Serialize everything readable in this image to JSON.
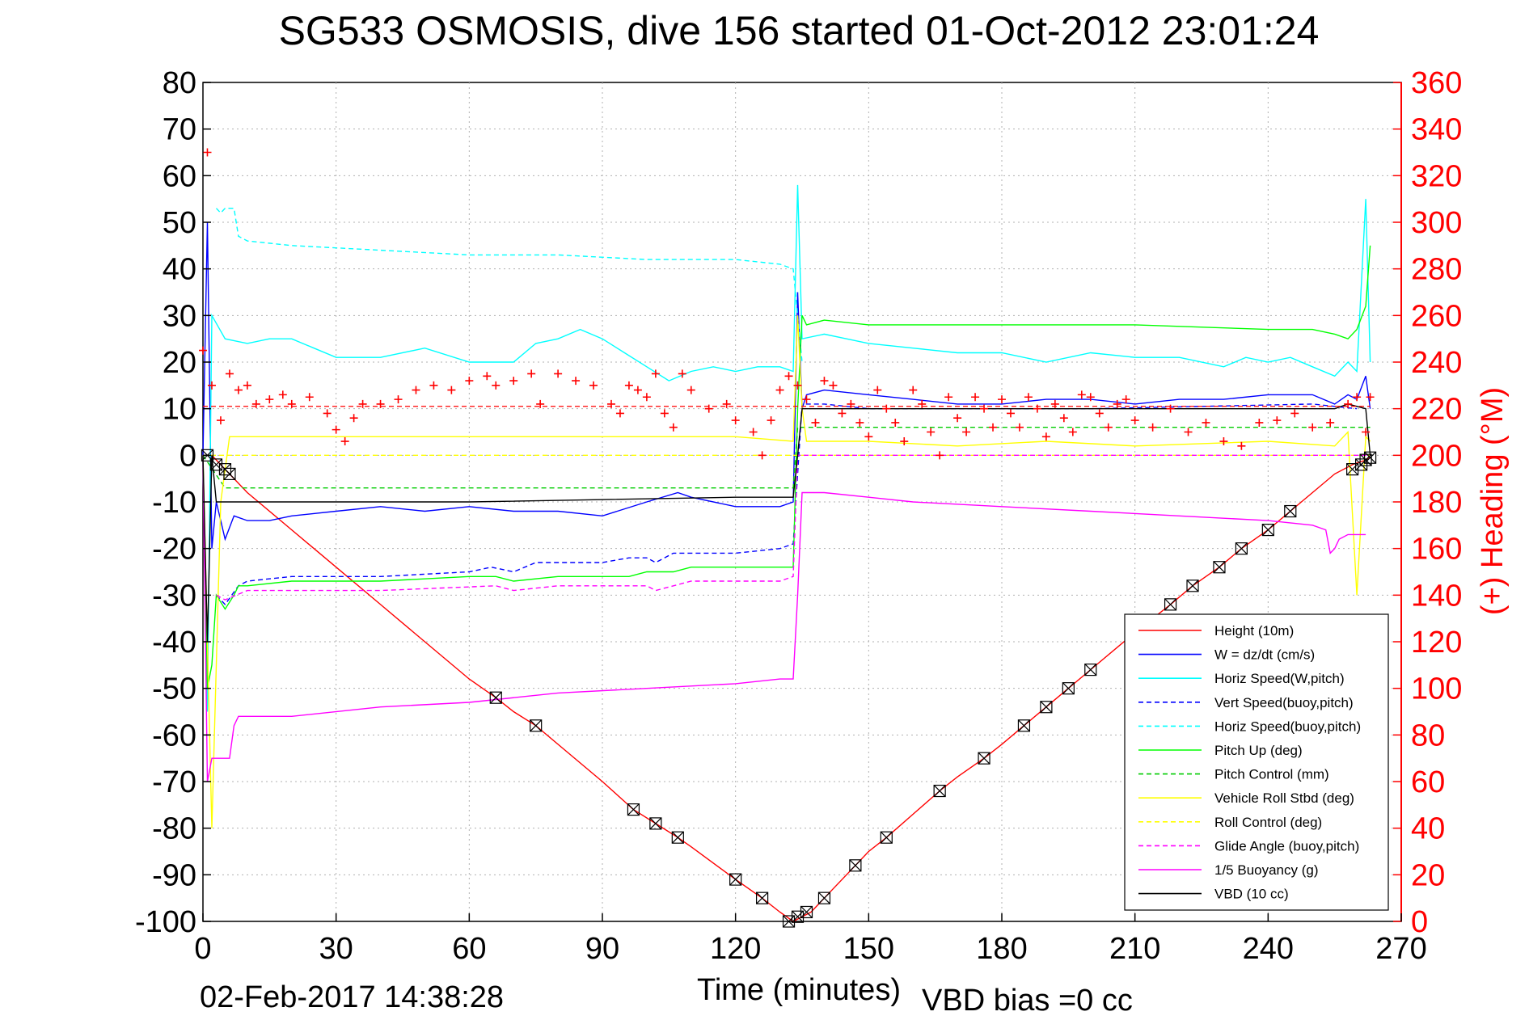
{
  "chart_data": {
    "type": "line",
    "title": "SG533 OSMOSIS, dive 156 started 01-Oct-2012 23:01:24",
    "xlabel": "Time (minutes)",
    "ylabel_right": "(+) Heading (°M)",
    "footer_left": "02-Feb-2017 14:38:28",
    "footer_right": "VBD bias =0 cc",
    "xlim": [
      0,
      270
    ],
    "ylim": [
      -100,
      80
    ],
    "ylim_right": [
      0,
      360
    ],
    "xticks": [
      0,
      30,
      60,
      90,
      120,
      150,
      180,
      210,
      240,
      270
    ],
    "yticks": [
      80,
      70,
      60,
      50,
      40,
      30,
      20,
      10,
      0,
      -10,
      -20,
      -30,
      -40,
      -50,
      -60,
      -70,
      -80,
      -90,
      -100
    ],
    "yticks_right": [
      360,
      340,
      320,
      300,
      280,
      260,
      240,
      220,
      200,
      180,
      160,
      140,
      120,
      100,
      80,
      60,
      40,
      20,
      0
    ],
    "grid": true,
    "legend_position": "bottom-right",
    "right_axis_color": "#ff0000",
    "series": [
      {
        "name": "Height (10m)",
        "color": "#ff0000",
        "dash": "solid",
        "x": [
          0,
          2,
          5,
          10,
          20,
          30,
          40,
          50,
          60,
          66,
          70,
          75,
          80,
          90,
          97,
          102,
          107,
          110,
          120,
          126,
          130,
          133,
          135,
          137,
          140,
          147,
          150,
          154,
          160,
          166,
          170,
          176,
          180,
          185,
          190,
          195,
          200,
          210,
          218,
          223,
          229,
          234,
          240,
          245,
          250,
          255,
          259,
          262,
          263
        ],
        "y": [
          0,
          0,
          -3,
          -8,
          -16,
          -24,
          -32,
          -40,
          -48,
          -52,
          -55,
          -58,
          -62,
          -70,
          -76,
          -79,
          -82,
          -84,
          -91,
          -95,
          -98,
          -100,
          -99,
          -98,
          -95,
          -88,
          -85,
          -82,
          -77,
          -72,
          -69,
          -65,
          -62,
          -58,
          -54,
          -50,
          -46,
          -38,
          -32,
          -28,
          -24,
          -20,
          -16,
          -12,
          -8,
          -4,
          -2,
          -1,
          -0.5
        ]
      },
      {
        "name": "W = dz/dt (cm/s)",
        "color": "#0000ff",
        "dash": "solid",
        "x": [
          0,
          1,
          2,
          3,
          5,
          7,
          10,
          15,
          20,
          30,
          40,
          50,
          60,
          70,
          80,
          90,
          100,
          107,
          110,
          120,
          130,
          133,
          134,
          135,
          136,
          140,
          150,
          160,
          170,
          180,
          190,
          200,
          210,
          220,
          230,
          240,
          250,
          255,
          258,
          260,
          262,
          263
        ],
        "y": [
          0,
          50,
          -20,
          -10,
          -18,
          -13,
          -14,
          -14,
          -13,
          -12,
          -11,
          -12,
          -11,
          -12,
          -12,
          -13,
          -10,
          -8,
          -9,
          -11,
          -11,
          -10,
          35,
          10,
          13,
          14,
          13,
          12,
          11,
          11,
          12,
          12,
          11,
          12,
          12,
          13,
          13,
          11,
          13,
          12,
          17,
          10
        ]
      },
      {
        "name": "Horiz Speed(W,pitch)",
        "color": "#00ffff",
        "dash": "solid",
        "x": [
          0,
          1,
          2,
          5,
          10,
          15,
          20,
          25,
          30,
          40,
          50,
          60,
          70,
          75,
          80,
          85,
          90,
          95,
          100,
          105,
          110,
          115,
          120,
          125,
          130,
          133,
          134,
          135,
          140,
          145,
          150,
          160,
          170,
          180,
          190,
          200,
          210,
          220,
          230,
          235,
          240,
          245,
          250,
          255,
          258,
          260,
          262,
          263
        ],
        "y": [
          0,
          -55,
          30,
          25,
          24,
          25,
          25,
          23,
          21,
          21,
          23,
          20,
          20,
          24,
          25,
          27,
          25,
          22,
          19,
          16,
          18,
          19,
          18,
          19,
          19,
          18,
          58,
          25,
          26,
          25,
          24,
          23,
          22,
          22,
          20,
          22,
          21,
          21,
          19,
          21,
          20,
          21,
          19,
          17,
          20,
          18,
          55,
          20
        ]
      },
      {
        "name": "Vert Speed(buoy,pitch)",
        "color": "#0000ff",
        "dash": "6,4",
        "x": [
          3,
          5,
          8,
          10,
          20,
          40,
          60,
          65,
          70,
          75,
          80,
          90,
          96,
          100,
          102,
          106,
          110,
          120,
          130,
          133,
          135,
          140,
          150,
          200,
          250,
          260
        ],
        "y": [
          -30,
          -32,
          -28,
          -27,
          -26,
          -26,
          -25,
          -24,
          -25,
          -23,
          -23,
          -23,
          -22,
          -22,
          -23,
          -21,
          -21,
          -21,
          -20,
          -19,
          11,
          11,
          10,
          10,
          11,
          10
        ]
      },
      {
        "name": "Horiz Speed(buoy,pitch)",
        "color": "#00ffff",
        "dash": "6,4",
        "x": [
          3,
          4,
          5,
          7,
          8,
          10,
          20,
          40,
          60,
          80,
          100,
          120,
          130,
          133,
          135
        ],
        "y": [
          53,
          52,
          53,
          53,
          47,
          46,
          45,
          44,
          43,
          43,
          42,
          42,
          41,
          40,
          20
        ]
      },
      {
        "name": "Pitch Up (deg)",
        "color": "#00ff00",
        "dash": "solid",
        "x": [
          0,
          1,
          2,
          3,
          5,
          7,
          8,
          10,
          20,
          40,
          60,
          66,
          70,
          80,
          90,
          96,
          100,
          106,
          110,
          120,
          130,
          133,
          134,
          135,
          136,
          140,
          150,
          170,
          190,
          210,
          240,
          250,
          255,
          258,
          260,
          262,
          263
        ],
        "y": [
          0,
          -50,
          -45,
          -30,
          -33,
          -30,
          -28,
          -28,
          -27,
          -27,
          -26,
          -26,
          -27,
          -26,
          -26,
          -26,
          -25,
          -25,
          -24,
          -24,
          -24,
          -24,
          10,
          30,
          28,
          29,
          28,
          28,
          28,
          28,
          27,
          27,
          26,
          25,
          27,
          32,
          45
        ]
      },
      {
        "name": "Pitch Control (mm)",
        "color": "#00cc00",
        "dash": "6,4",
        "x": [
          0,
          5,
          10,
          60,
          133,
          134,
          136,
          180,
          263
        ],
        "y": [
          0,
          -7,
          -7,
          -7,
          -7,
          6,
          6,
          6,
          6
        ]
      },
      {
        "name": "Vehicle Roll Stbd (deg)",
        "color": "#ffff00",
        "dash": "solid",
        "x": [
          0,
          1,
          2,
          4,
          6,
          10,
          30,
          60,
          90,
          120,
          133,
          134,
          135,
          136,
          140,
          150,
          170,
          190,
          210,
          240,
          255,
          258,
          260,
          262,
          263
        ],
        "y": [
          0,
          -40,
          -80,
          -10,
          4,
          4,
          4,
          4,
          4,
          4,
          3,
          30,
          10,
          3,
          3,
          3,
          2,
          3,
          2,
          3,
          2,
          5,
          -30,
          4,
          3
        ]
      },
      {
        "name": "Roll Control (deg)",
        "color": "#ffff00",
        "dash": "6,4",
        "x": [
          0,
          5,
          60,
          133,
          134,
          200,
          263
        ],
        "y": [
          0,
          0,
          0,
          0,
          0,
          0,
          0
        ]
      },
      {
        "name": "Glide Angle (buoy,pitch)",
        "color": "#ff00ff",
        "dash": "6,4",
        "x": [
          3,
          5,
          10,
          40,
          66,
          70,
          80,
          96,
          100,
          102,
          110,
          120,
          130,
          133,
          134,
          140,
          200,
          263
        ],
        "y": [
          -30,
          -31,
          -29,
          -29,
          -28,
          -29,
          -28,
          -28,
          -28,
          -29,
          -27,
          -27,
          -27,
          -26,
          0,
          0,
          0,
          0
        ]
      },
      {
        "name": "1/5 Buoyancy (g)",
        "color": "#ff00ff",
        "dash": "solid",
        "x": [
          0,
          1,
          2,
          3,
          5,
          6,
          7,
          8,
          10,
          20,
          40,
          60,
          80,
          100,
          120,
          130,
          133,
          134,
          135,
          136,
          140,
          150,
          160,
          180,
          200,
          220,
          240,
          250,
          253,
          254,
          255,
          256,
          258,
          262
        ],
        "y": [
          0,
          -70,
          -65,
          -65,
          -65,
          -65,
          -58,
          -56,
          -56,
          -56,
          -54,
          -53,
          -51,
          -50,
          -49,
          -48,
          -48,
          -30,
          -8,
          -8,
          -8,
          -9,
          -10,
          -11,
          -12,
          -13,
          -14,
          -15,
          -16,
          -21,
          -20,
          -18,
          -17,
          -17
        ]
      },
      {
        "name": "VBD (10 cc)",
        "color": "#000000",
        "dash": "solid",
        "x": [
          0,
          1,
          2,
          3,
          10,
          60,
          120,
          133,
          134,
          135,
          136,
          150,
          200,
          255,
          258,
          262,
          263
        ],
        "y": [
          0,
          -40,
          0,
          -10,
          -10,
          -10,
          -9,
          -9,
          0,
          10,
          10,
          10,
          10,
          10,
          11,
          10,
          0
        ]
      }
    ],
    "heading_series": {
      "name": "(+) Heading",
      "color": "#ff0000",
      "marker": "+",
      "x": [
        0,
        1,
        2,
        4,
        6,
        8,
        10,
        12,
        15,
        18,
        20,
        24,
        28,
        30,
        32,
        34,
        36,
        40,
        44,
        48,
        52,
        56,
        60,
        64,
        66,
        70,
        74,
        76,
        80,
        84,
        88,
        92,
        94,
        96,
        98,
        100,
        102,
        104,
        106,
        108,
        110,
        114,
        118,
        120,
        124,
        126,
        128,
        130,
        132,
        134,
        136,
        138,
        140,
        142,
        144,
        146,
        148,
        150,
        152,
        154,
        156,
        158,
        160,
        162,
        164,
        166,
        168,
        170,
        172,
        174,
        176,
        178,
        180,
        182,
        184,
        186,
        188,
        190,
        192,
        194,
        196,
        198,
        200,
        202,
        204,
        206,
        208,
        210,
        214,
        218,
        222,
        226,
        230,
        234,
        238,
        242,
        246,
        250,
        254,
        258,
        260,
        262,
        263
      ],
      "y": [
        245,
        330,
        230,
        215,
        235,
        228,
        230,
        222,
        224,
        226,
        222,
        225,
        218,
        211,
        206,
        216,
        222,
        222,
        224,
        228,
        230,
        228,
        232,
        234,
        230,
        232,
        235,
        222,
        235,
        232,
        230,
        222,
        218,
        230,
        228,
        225,
        235,
        218,
        212,
        235,
        228,
        220,
        222,
        215,
        210,
        200,
        215,
        228,
        234,
        230,
        224,
        214,
        232,
        230,
        218,
        222,
        214,
        208,
        228,
        220,
        214,
        206,
        228,
        222,
        210,
        200,
        225,
        216,
        210,
        225,
        220,
        212,
        224,
        218,
        212,
        225,
        220,
        208,
        222,
        216,
        210,
        226,
        225,
        218,
        212,
        222,
        224,
        215,
        212,
        220,
        210,
        214,
        206,
        204,
        214,
        215,
        218,
        212,
        214,
        222,
        225,
        210,
        225
      ]
    },
    "heading_mean": {
      "value": 221,
      "color": "#ff0000",
      "dash": "6,4"
    },
    "markers": {
      "name": "Height markers",
      "color": "#000000",
      "x": [
        1,
        3,
        5,
        6,
        66,
        75,
        97,
        102,
        107,
        120,
        126,
        132,
        134,
        136,
        140,
        147,
        154,
        166,
        176,
        185,
        190,
        195,
        200,
        218,
        223,
        229,
        234,
        240,
        245,
        259,
        261,
        262,
        263
      ],
      "y": [
        0,
        -2,
        -3,
        -4,
        -52,
        -58,
        -76,
        -79,
        -82,
        -91,
        -95,
        -100,
        -99,
        -98,
        -95,
        -88,
        -82,
        -72,
        -65,
        -58,
        -54,
        -50,
        -46,
        -32,
        -28,
        -24,
        -20,
        -16,
        -12,
        -3,
        -2,
        -1,
        -0.5
      ]
    }
  },
  "legend_items": [
    {
      "label": "Height (10m)",
      "color": "#ff0000",
      "dash": "solid"
    },
    {
      "label": "W = dz/dt (cm/s)",
      "color": "#0000ff",
      "dash": "solid"
    },
    {
      "label": "Horiz Speed(W,pitch)",
      "color": "#00ffff",
      "dash": "solid"
    },
    {
      "label": "Vert Speed(buoy,pitch)",
      "color": "#0000ff",
      "dash": "6,4"
    },
    {
      "label": "Horiz Speed(buoy,pitch)",
      "color": "#00ffff",
      "dash": "6,4"
    },
    {
      "label": "Pitch Up (deg)",
      "color": "#00ff00",
      "dash": "solid"
    },
    {
      "label": "Pitch Control (mm)",
      "color": "#00cc00",
      "dash": "6,4"
    },
    {
      "label": "Vehicle Roll Stbd (deg)",
      "color": "#ffff00",
      "dash": "solid"
    },
    {
      "label": "Roll Control (deg)",
      "color": "#ffff00",
      "dash": "6,4"
    },
    {
      "label": "Glide Angle (buoy,pitch)",
      "color": "#ff00ff",
      "dash": "6,4"
    },
    {
      "label": "1/5 Buoyancy (g)",
      "color": "#ff00ff",
      "dash": "solid"
    },
    {
      "label": "VBD (10 cc)",
      "color": "#000000",
      "dash": "solid"
    }
  ]
}
